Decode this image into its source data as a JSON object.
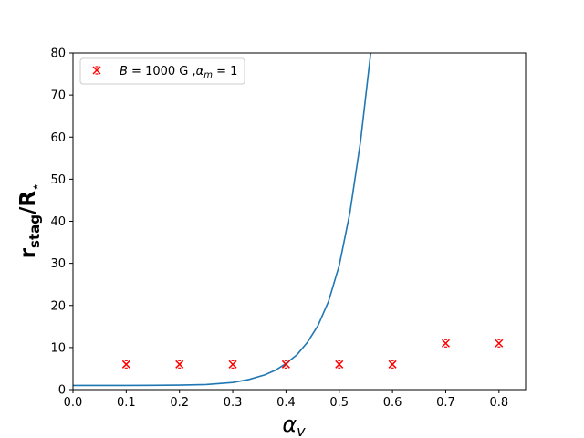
{
  "chart_data": {
    "type": "line",
    "xlabel_symbol": "α",
    "xlabel_sub": "v",
    "ylabel_main": "r",
    "ylabel_sub": "stag",
    "ylabel_tail": "/R",
    "ylabel_sub2": "⋆",
    "xlim": [
      0.0,
      0.85
    ],
    "ylim": [
      0,
      80
    ],
    "x_ticks": [
      0.0,
      0.1,
      0.2,
      0.3,
      0.4,
      0.5,
      0.6,
      0.7,
      0.8
    ],
    "x_tick_labels": [
      "0.0",
      "0.1",
      "0.2",
      "0.3",
      "0.4",
      "0.5",
      "0.6",
      "0.7",
      "0.8"
    ],
    "y_ticks": [
      0,
      10,
      20,
      30,
      40,
      50,
      60,
      70,
      80
    ],
    "y_tick_labels": [
      "0",
      "10",
      "20",
      "30",
      "40",
      "50",
      "60",
      "70",
      "80"
    ],
    "grid": false,
    "legend_position": "top-left",
    "series": [
      {
        "name": "B = 1000 G , αm = 1",
        "kind": "scatter",
        "marker": "x",
        "color": "#ff0000",
        "x": [
          0.1,
          0.2,
          0.3,
          0.4,
          0.5,
          0.6,
          0.7,
          0.8
        ],
        "y": [
          6,
          6,
          6,
          6,
          6,
          6,
          11,
          11
        ]
      },
      {
        "kind": "line",
        "color": "#1f77b4",
        "x": [
          0.0,
          0.05,
          0.1,
          0.15,
          0.2,
          0.25,
          0.3,
          0.33,
          0.36,
          0.38,
          0.4,
          0.42,
          0.44,
          0.46,
          0.48,
          0.5,
          0.52,
          0.54,
          0.56
        ],
        "y": [
          1.0,
          1.0,
          1.0,
          1.02,
          1.06,
          1.2,
          1.7,
          2.4,
          3.5,
          4.6,
          6.2,
          8.2,
          11.2,
          15.2,
          21.0,
          29.5,
          42.0,
          59.0,
          81.0
        ]
      }
    ],
    "legend": {
      "label_B": "B",
      "label_eq1": " = 1000 G ,",
      "label_alpha": "α",
      "label_m": "m",
      "label_eq2": " = 1"
    }
  }
}
